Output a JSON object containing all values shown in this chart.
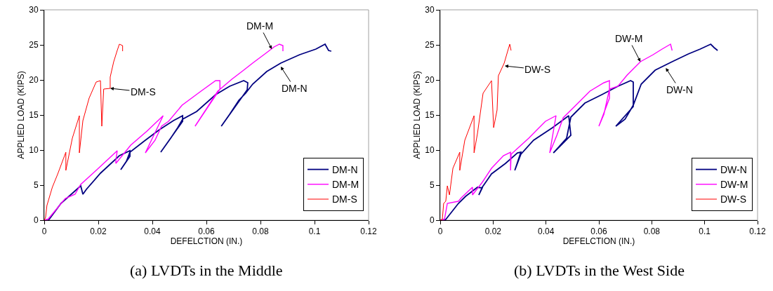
{
  "chart_data": [
    {
      "type": "line",
      "title": "(a) LVDTs in the Middle",
      "xlabel": "DEFELCTION (IN.)",
      "ylabel": "APPLIED LOAD (KIPS)",
      "xlim": [
        0,
        0.12
      ],
      "ylim": [
        0,
        30
      ],
      "xticks": [
        0,
        0.02,
        0.04,
        0.06,
        0.08,
        0.1,
        0.12
      ],
      "yticks": [
        0,
        5,
        10,
        15,
        20,
        25,
        30
      ],
      "legend": "bottom right",
      "series": [
        {
          "name": "DM-N",
          "color": "#000080",
          "x": [
            0,
            0.0018,
            0.0062,
            0.0135,
            0.0143,
            0.0156,
            0.0208,
            0.0278,
            0.0317,
            0.0317,
            0.0283,
            0.0304,
            0.0317,
            0.0374,
            0.0426,
            0.0478,
            0.0512,
            0.0512,
            0.0431,
            0.0468,
            0.0494,
            0.0512,
            0.0564,
            0.0634,
            0.0686,
            0.0738,
            0.0753,
            0.0751,
            0.0655,
            0.0686,
            0.072,
            0.0745,
            0.0771,
            0.0823,
            0.0875,
            0.0945,
            0.1005,
            0.1039,
            0.1052,
            0.1062
          ],
          "values": [
            0,
            0.1,
            2.4,
            4.9,
            3.7,
            4.4,
            6.7,
            9.2,
            9.9,
            9.1,
            7.2,
            8.4,
            9.7,
            11.4,
            12.9,
            14.2,
            14.9,
            14.1,
            9.7,
            11.7,
            13.2,
            14.4,
            15.5,
            17.9,
            19.1,
            19.9,
            19.6,
            18.6,
            13.4,
            15.1,
            17.1,
            18.1,
            19.4,
            21.2,
            22.4,
            23.6,
            24.4,
            25.1,
            24.2,
            24.1
          ]
        },
        {
          "name": "DM-M",
          "color": "#ff00ff",
          "x": [
            0,
            0.0013,
            0.0078,
            0.0114,
            0.0135,
            0.0192,
            0.027,
            0.0265,
            0.0265,
            0.032,
            0.038,
            0.044,
            0.0374,
            0.041,
            0.0434,
            0.046,
            0.051,
            0.058,
            0.0634,
            0.065,
            0.065,
            0.0558,
            0.0597,
            0.0642,
            0.0694,
            0.0738,
            0.0771,
            0.0823,
            0.085,
            0.087,
            0.0883,
            0.0883
          ],
          "values": [
            0,
            0.1,
            3.1,
            3.7,
            5.1,
            7.1,
            9.9,
            8.5,
            8.1,
            10.7,
            12.7,
            14.9,
            9.6,
            11.4,
            13.4,
            14.1,
            16.4,
            18.4,
            19.9,
            19.9,
            18.7,
            13.4,
            15.7,
            18.4,
            20.1,
            21.4,
            22.4,
            23.9,
            24.7,
            25.1,
            24.9,
            24.1
          ]
        },
        {
          "name": "DM-S",
          "color": "#ff0000",
          "x": [
            0,
            0.0005,
            0.001,
            0.003,
            0.005,
            0.008,
            0.008,
            0.0104,
            0.013,
            0.013,
            0.0143,
            0.0166,
            0.0192,
            0.0208,
            0.0213,
            0.022,
            0.0244,
            0.0244,
            0.0257,
            0.027,
            0.0278,
            0.029,
            0.029
          ],
          "values": [
            0,
            0.4,
            2.1,
            4.7,
            6.6,
            9.7,
            7.1,
            11.7,
            14.9,
            9.6,
            14.2,
            17.4,
            19.7,
            19.9,
            13.4,
            18.7,
            18.8,
            20.4,
            22.6,
            24.2,
            25.1,
            24.9,
            24.1
          ]
        }
      ],
      "annotations": [
        {
          "text": "DM-S",
          "x": 0.0244,
          "y": 18.8
        },
        {
          "text": "DM-M",
          "x": 0.0842,
          "y": 24.4
        },
        {
          "text": "DM-N",
          "x": 0.0875,
          "y": 21.9
        }
      ]
    },
    {
      "type": "line",
      "title": "(b) LVDTs in the West Side",
      "xlabel": "DEFELCTION (IN.)",
      "ylabel": "APPLIED LOAD (KIPS)",
      "xlim": [
        0,
        0.12
      ],
      "ylim": [
        0,
        30
      ],
      "xticks": [
        0,
        0.02,
        0.04,
        0.06,
        0.08,
        0.1,
        0.12
      ],
      "yticks": [
        0,
        5,
        10,
        15,
        20,
        25,
        30
      ],
      "legend": "bottom right",
      "series": [
        {
          "name": "DW-N",
          "color": "#000080",
          "x": [
            0,
            0.0021,
            0.0069,
            0.0096,
            0.0141,
            0.0159,
            0.0146,
            0.0159,
            0.0194,
            0.0247,
            0.0292,
            0.0305,
            0.0282,
            0.0305,
            0.0353,
            0.0425,
            0.0486,
            0.0494,
            0.0428,
            0.0478,
            0.0494,
            0.0547,
            0.0611,
            0.0672,
            0.072,
            0.073,
            0.073,
            0.0664,
            0.0699,
            0.073,
            0.076,
            0.0813,
            0.0877,
            0.0938,
            0.0983,
            0.1023,
            0.1036,
            0.1049
          ],
          "values": [
            0,
            0.1,
            2.4,
            3.4,
            4.7,
            4.6,
            3.6,
            4.7,
            6.6,
            8.1,
            9.6,
            9.7,
            7.1,
            9.4,
            11.4,
            13.2,
            14.9,
            12.1,
            9.6,
            11.7,
            14.7,
            16.7,
            17.9,
            19.1,
            19.9,
            19.7,
            16.2,
            13.4,
            14.4,
            16.4,
            19.4,
            21.4,
            22.6,
            23.7,
            24.4,
            25.1,
            24.6,
            24.2
          ]
        },
        {
          "name": "DW-M",
          "color": "#ff00ff",
          "x": [
            0,
            0.0016,
            0.0027,
            0.0069,
            0.008,
            0.0122,
            0.0122,
            0.0159,
            0.0194,
            0.0239,
            0.0266,
            0.0266,
            0.0268,
            0.0335,
            0.0398,
            0.0438,
            0.0414,
            0.0441,
            0.0465,
            0.0513,
            0.0566,
            0.0619,
            0.064,
            0.064,
            0.06,
            0.0619,
            0.064,
            0.0672,
            0.0707,
            0.0757,
            0.0805,
            0.0839,
            0.0871,
            0.0877
          ],
          "values": [
            0,
            0.1,
            2.4,
            2.7,
            3.2,
            4.7,
            3.6,
            5.4,
            7.4,
            9.2,
            9.7,
            7.1,
            9.4,
            11.7,
            14.1,
            14.9,
            9.6,
            12.1,
            14.6,
            16.4,
            18.4,
            19.6,
            19.9,
            17.4,
            13.4,
            15.1,
            18.7,
            19.1,
            20.7,
            22.6,
            23.6,
            24.4,
            25.1,
            24.2
          ]
        },
        {
          "name": "DW-S",
          "color": "#ff0000",
          "x": [
            0,
            0.0008,
            0.0013,
            0.0021,
            0.0027,
            0.0035,
            0.0048,
            0.0074,
            0.0074,
            0.0093,
            0.0128,
            0.0128,
            0.0141,
            0.0162,
            0.0194,
            0.0202,
            0.0215,
            0.022,
            0.0242,
            0.0255,
            0.0263,
            0.0268
          ],
          "values": [
            0,
            0.1,
            2.4,
            2.7,
            4.9,
            3.6,
            7.4,
            9.7,
            7.1,
            11.4,
            14.9,
            9.6,
            12.4,
            18.1,
            19.9,
            13.2,
            15.7,
            20.6,
            22.4,
            24.1,
            25.1,
            24.2
          ]
        }
      ],
      "annotations": [
        {
          "text": "DW-S",
          "x": 0.0244,
          "y": 22
        },
        {
          "text": "DW-M",
          "x": 0.0757,
          "y": 22.6
        },
        {
          "text": "DW-N",
          "x": 0.0853,
          "y": 21.7
        }
      ]
    }
  ]
}
